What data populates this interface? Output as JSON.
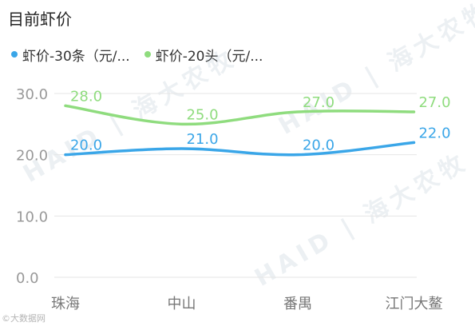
{
  "header": {
    "title": "目前虾价"
  },
  "watermark": {
    "text": "HAID | 海大农牧",
    "footer": "©大数据网"
  },
  "colors": {
    "series1": "#3aa6e8",
    "series2": "#8fdc7e",
    "grid": "#e6e6e6",
    "axis_text": "#999999"
  },
  "chart_data": {
    "type": "line",
    "categories": [
      "珠海",
      "中山",
      "番禺",
      "江门大鳌"
    ],
    "series": [
      {
        "name": "虾价-30条（元/...",
        "values": [
          20.0,
          21.0,
          20.0,
          22.0
        ],
        "color": "#3aa6e8"
      },
      {
        "name": "虾价-20头（元/...",
        "values": [
          28.0,
          25.0,
          27.0,
          27.0
        ],
        "color": "#8fdc7e"
      }
    ],
    "yticks": [
      "0.0",
      "10.0",
      "20.0",
      "30.0"
    ],
    "ylim": [
      0,
      30
    ],
    "smooth": true,
    "data_labels": true,
    "grid": true,
    "legend": "top-left"
  }
}
